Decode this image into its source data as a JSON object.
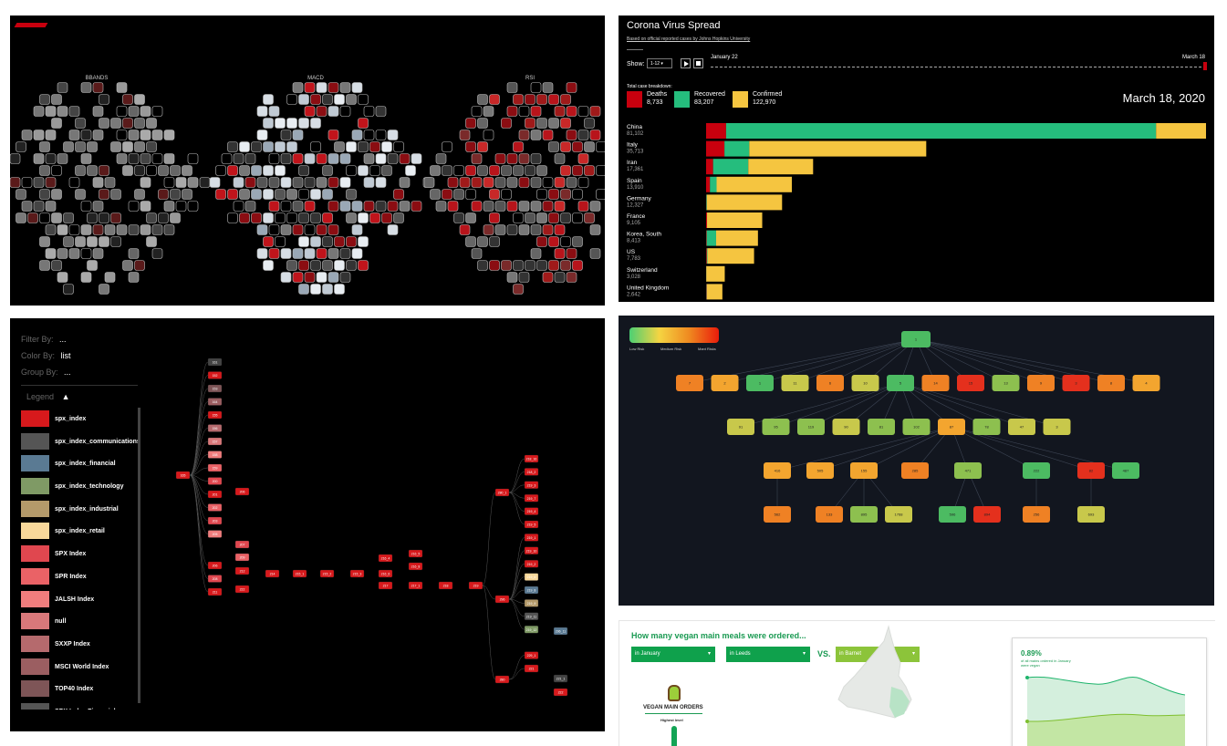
{
  "colors": {
    "red": "#c8000e",
    "green": "#25bd7d",
    "yellow": "#f5c540",
    "dark": "#000000",
    "navy": "#12161f"
  },
  "top_left": {
    "titles": [
      "BBANDS",
      "MACD",
      "RSI"
    ]
  },
  "corona": {
    "title": "Corona Virus Spread",
    "subtitle": "Based on official reported cases by Johns Hopkins University",
    "show_label": "Show:",
    "show_value": "1-12",
    "play_icon": "play-icon",
    "stop_icon": "stop-icon",
    "timeline_start": "January 22",
    "timeline_end": "March 18",
    "breakdown_label": "Total case breakdown:",
    "date": "March 18, 2020",
    "totals": [
      {
        "label": "Deaths",
        "value": "8,733",
        "color": "#c8000e"
      },
      {
        "label": "Recovered",
        "value": "83,207",
        "color": "#25bd7d"
      },
      {
        "label": "Confirmed",
        "value": "122,970",
        "color": "#f5c540"
      }
    ],
    "chart_data": {
      "type": "bar",
      "categories": [
        "China",
        "Italy",
        "Iran",
        "Spain",
        "Germany",
        "France",
        "Korea, South",
        "US",
        "Switzerland",
        "United Kingdom"
      ],
      "totals": [
        "81,102",
        "35,713",
        "17,361",
        "13,910",
        "12,327",
        "9,105",
        "8,413",
        "7,783",
        "3,028",
        "2,642"
      ],
      "series": [
        {
          "name": "Deaths",
          "values": [
            3241,
            2978,
            1135,
            623,
            28,
            148,
            84,
            118,
            28,
            71
          ]
        },
        {
          "name": "Recovered",
          "values": [
            69755,
            4025,
            5710,
            1081,
            105,
            12,
            1540,
            106,
            15,
            67
          ]
        },
        {
          "name": "Confirmed",
          "values": [
            8106,
            28710,
            10516,
            12206,
            12194,
            8945,
            6789,
            7559,
            2985,
            2504
          ]
        }
      ],
      "xlim": [
        0,
        81102
      ]
    }
  },
  "tree_left": {
    "filter_label": "Filter By:",
    "filter_value": "...",
    "color_label": "Color By:",
    "color_value": "list",
    "group_label": "Group By:",
    "group_value": "...",
    "legend_label": "Legend",
    "legend": [
      {
        "name": "spx_index",
        "color": "#d7191c"
      },
      {
        "name": "spx_index_communications",
        "color": "#555555"
      },
      {
        "name": "spx_index_financial",
        "color": "#5a7a93"
      },
      {
        "name": "spx_index_technology",
        "color": "#7f9a65"
      },
      {
        "name": "spx_index_industrial",
        "color": "#b49a6a"
      },
      {
        "name": "spx_index_retail",
        "color": "#f8d89a"
      },
      {
        "name": "SPX Index",
        "color": "#e0474f"
      },
      {
        "name": "SPR Index",
        "color": "#ea6266"
      },
      {
        "name": "JALSH Index",
        "color": "#f07d7d"
      },
      {
        "name": "null",
        "color": "#d9787a"
      },
      {
        "name": "SXXP Index",
        "color": "#b56a6d"
      },
      {
        "name": "MSCI World Index",
        "color": "#9b5e61"
      },
      {
        "name": "TOP40 Index",
        "color": "#7e5557"
      },
      {
        "name": "SPX Index Financials",
        "color": "#555555"
      }
    ],
    "nodes": {
      "root": "165",
      "col1": [
        "161",
        "152",
        "153",
        "164",
        "155",
        "156",
        "157",
        "158",
        "159",
        "200",
        "201",
        "202",
        "203",
        "205",
        "206",
        "208",
        "211"
      ],
      "col2": [
        "206",
        "207",
        "209",
        "212",
        "222"
      ],
      "chain": [
        "214",
        "215_1",
        "215_2",
        "215_3",
        "216_4",
        "216_6",
        "217",
        "217_1",
        "218",
        "219"
      ],
      "extra": [
        "216_5",
        "216_8"
      ],
      "right1": [
        "280_1",
        "296",
        "280"
      ],
      "right2": [
        "218_16",
        "218_2",
        "219_3",
        "219_7",
        "219_4",
        "219_5",
        "219_1",
        "219_10",
        "219_2",
        "219_6",
        "219_8",
        "219_9",
        "219_11",
        "219_12",
        "229_1",
        "221"
      ],
      "right3": [
        "296_11",
        "221_1",
        "222"
      ]
    }
  },
  "risk_tree": {
    "legend_labels": [
      "Low Risk",
      "Medium Risk",
      "Mant Risks"
    ],
    "root": "1",
    "level1": [
      "7",
      "2",
      "1",
      "11",
      "6",
      "10",
      "5",
      "14",
      "15",
      "13",
      "9",
      "3",
      "8",
      "4"
    ],
    "level2": [
      "91",
      "95",
      "119",
      "90",
      "81",
      "102",
      "87",
      "78",
      "47",
      "3"
    ],
    "level3": [
      "416",
      "505",
      "155",
      "285",
      "471",
      "222",
      "82",
      "487"
    ],
    "level4": [
      "562",
      "133",
      "895",
      "1768",
      "596",
      "894",
      "256",
      "693"
    ]
  },
  "vegan": {
    "title": "How many vegan main meals were ordered...",
    "dropdowns": [
      "in January",
      "in Leeds",
      "in Barnet"
    ],
    "vs": "VS.",
    "orders_label": "VEGAN MAIN ORDERS",
    "highest_label": "Highest level",
    "percent": "0.89%",
    "percent_caption": "of all mains ordered in January were vegan"
  }
}
